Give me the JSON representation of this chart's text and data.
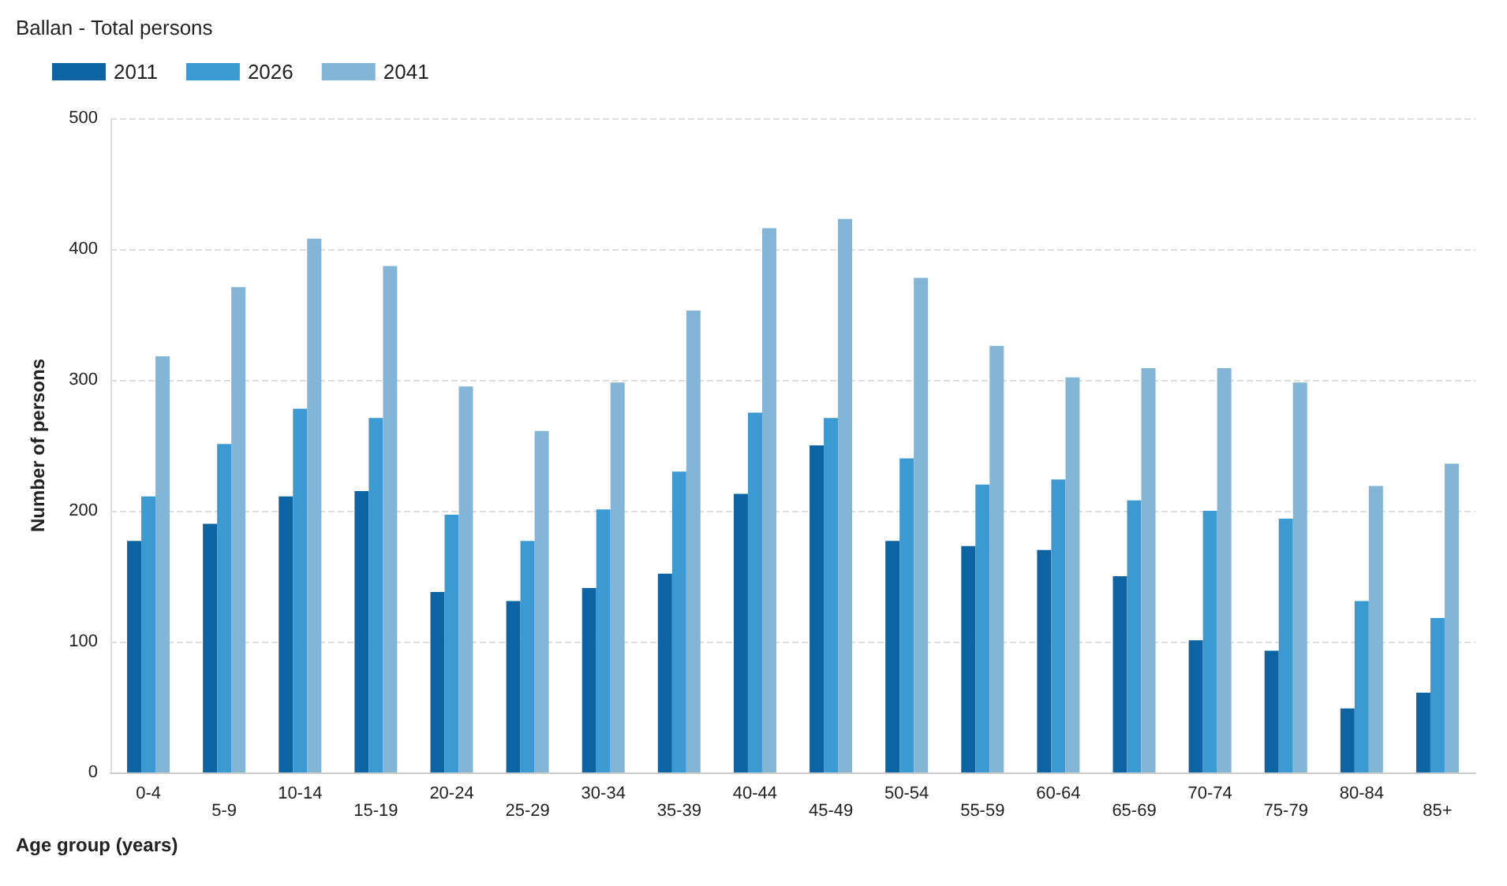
{
  "chart_data": {
    "type": "bar",
    "title": "Ballan - Total persons",
    "xlabel": "Age group (years)",
    "ylabel": "Number of persons",
    "categories": [
      "0-4",
      "5-9",
      "10-14",
      "15-19",
      "20-24",
      "25-29",
      "30-34",
      "35-39",
      "40-44",
      "45-49",
      "50-54",
      "55-59",
      "60-64",
      "65-69",
      "70-74",
      "75-79",
      "80-84",
      "85+"
    ],
    "series": [
      {
        "name": "2011",
        "color": "#0c64a3",
        "values": [
          177,
          190,
          211,
          215,
          138,
          131,
          141,
          152,
          213,
          250,
          177,
          173,
          170,
          150,
          101,
          93,
          49,
          61
        ]
      },
      {
        "name": "2026",
        "color": "#3b9ad2",
        "values": [
          211,
          251,
          278,
          271,
          197,
          177,
          201,
          230,
          275,
          271,
          240,
          220,
          224,
          208,
          200,
          194,
          131,
          118
        ]
      },
      {
        "name": "2041",
        "color": "#82b5d6",
        "values": [
          318,
          371,
          408,
          387,
          295,
          261,
          298,
          353,
          416,
          423,
          378,
          326,
          302,
          309,
          309,
          298,
          219,
          236
        ]
      }
    ],
    "ylim": [
      0,
      500
    ],
    "yticks": [
      0,
      100,
      200,
      300,
      400,
      500
    ],
    "grid": "y",
    "legend": "top left"
  }
}
